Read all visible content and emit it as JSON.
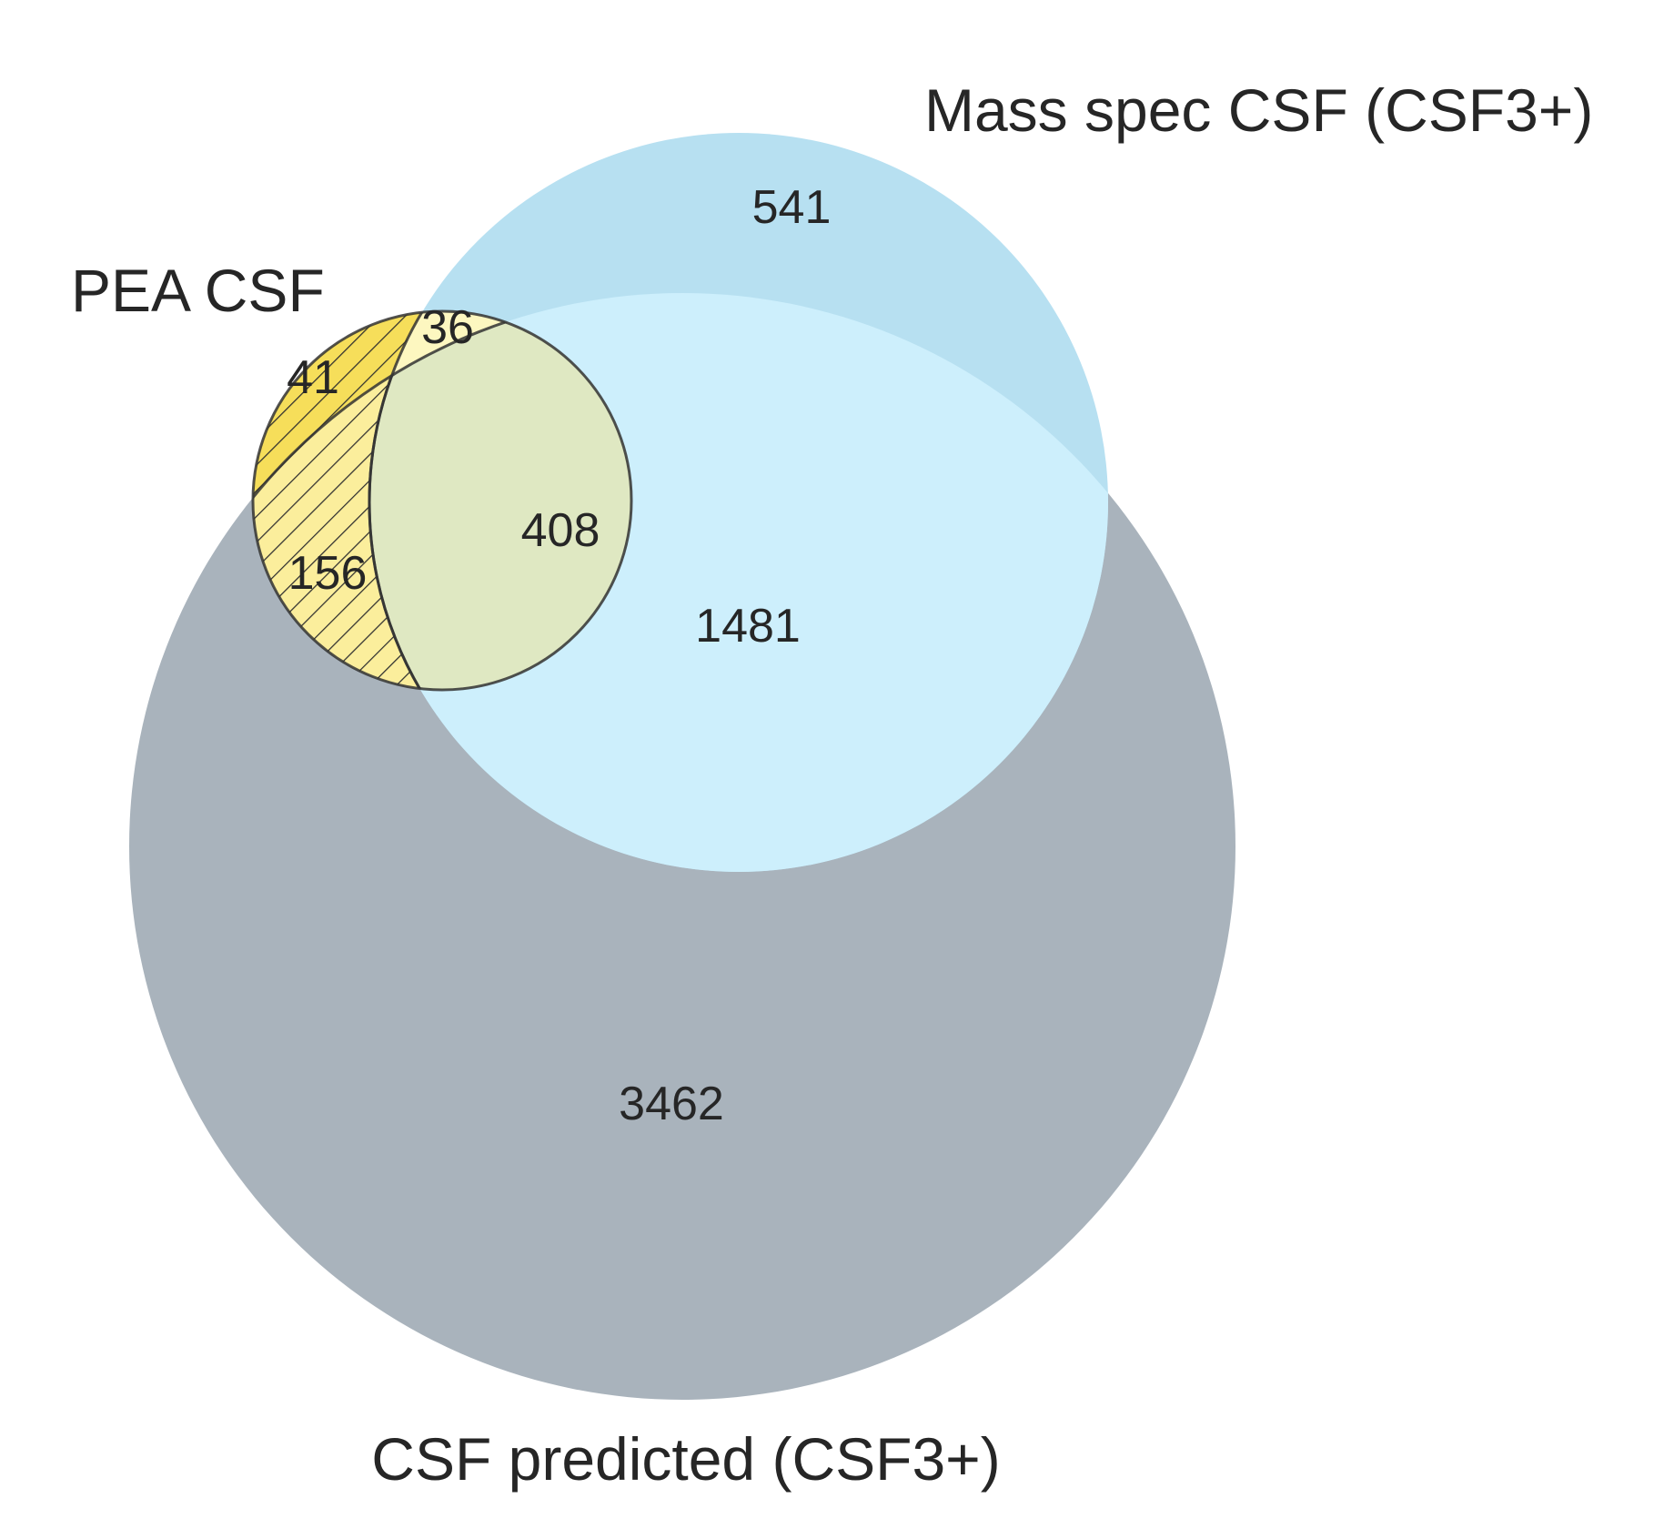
{
  "chart_data": {
    "type": "venn",
    "sets": [
      {
        "id": "pea",
        "name": "PEA CSF",
        "color": "#f5d40f",
        "hatched": true
      },
      {
        "id": "ms",
        "name": "Mass spec CSF (CSF3+)",
        "color": "#9fd4ee"
      },
      {
        "id": "pred",
        "name": "CSF predicted (CSF3+)",
        "color": "#a9b3bc"
      }
    ],
    "regions": [
      {
        "sets": [
          "pea"
        ],
        "value": "41"
      },
      {
        "sets": [
          "pea",
          "ms"
        ],
        "value": "36"
      },
      {
        "sets": [
          "pea",
          "pred"
        ],
        "value": "156"
      },
      {
        "sets": [
          "pea",
          "ms",
          "pred"
        ],
        "value": "408"
      },
      {
        "sets": [
          "ms"
        ],
        "value": "541"
      },
      {
        "sets": [
          "ms",
          "pred"
        ],
        "value": "1481"
      },
      {
        "sets": [
          "pred"
        ],
        "value": "3462"
      }
    ]
  }
}
